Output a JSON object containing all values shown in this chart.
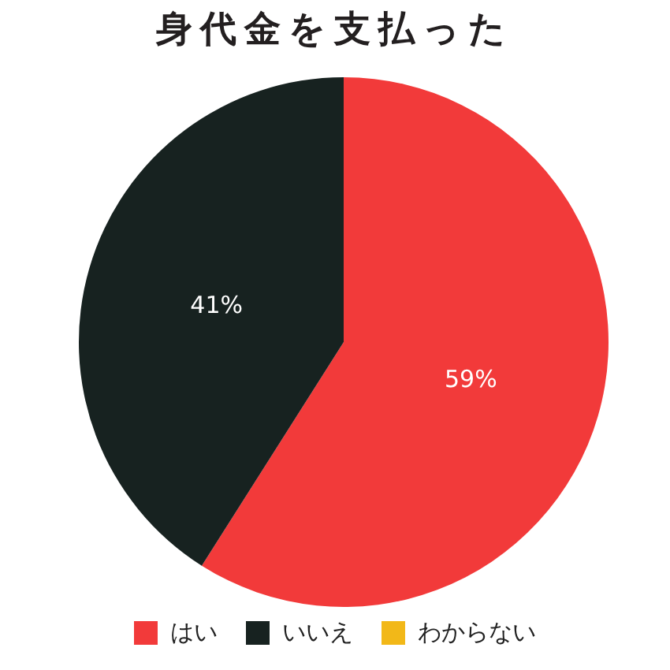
{
  "chart_data": {
    "type": "pie",
    "title": "身代金を支払った",
    "categories": [
      "はい",
      "いいえ",
      "わからない"
    ],
    "values": [
      59,
      41,
      0
    ],
    "colors": [
      "#f23a3a",
      "#172220",
      "#f2b818"
    ],
    "value_labels": [
      "59%",
      "41%",
      null
    ],
    "legend": "bottom"
  }
}
